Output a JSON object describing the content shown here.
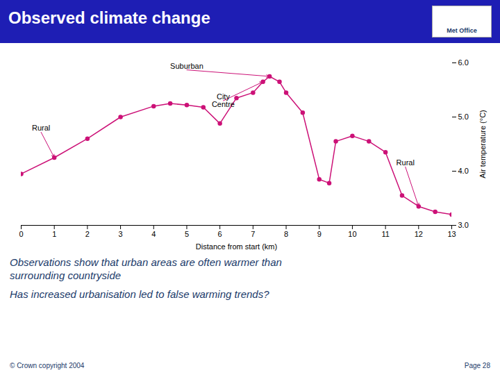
{
  "chart_data": {
    "type": "line",
    "title": "Observed climate change",
    "logo_text": "Met Office",
    "notes": [
      "Observations show that urban areas are often warmer than\nsurrounding countryside",
      "Has increased urbanisation led to false warming trends?"
    ],
    "footer_left": "© Crown copyright 2004",
    "footer_right": "Page 28",
    "xlabel": "Distance from start (km)",
    "ylabel": "Air temperature (°C)",
    "x": [
      0,
      1,
      2,
      3,
      4,
      4.5,
      5,
      5.5,
      6,
      6.5,
      7,
      7.3,
      7.5,
      7.8,
      8,
      8.5,
      9,
      9.3,
      9.5,
      10,
      10.5,
      11,
      11.5,
      12,
      12.5,
      13
    ],
    "values": [
      3.95,
      4.25,
      4.6,
      5.0,
      5.2,
      5.25,
      5.22,
      5.18,
      4.88,
      5.35,
      5.45,
      5.65,
      5.75,
      5.65,
      5.45,
      5.08,
      3.85,
      3.78,
      4.55,
      4.65,
      4.55,
      4.35,
      3.55,
      3.35,
      3.25,
      3.2
    ],
    "color": "#cc1177",
    "marker": "circle",
    "grid": false,
    "xlim": [
      0,
      13
    ],
    "ylim": [
      3,
      6
    ],
    "xticks": [
      0,
      1,
      2,
      3,
      4,
      5,
      6,
      7,
      8,
      9,
      10,
      11,
      12,
      13
    ],
    "yticks": [
      3,
      4,
      5,
      6
    ],
    "annotations": [
      {
        "text": "Rural",
        "xy": [
          1.0,
          4.25
        ],
        "xytext": [
          0.6,
          4.72
        ]
      },
      {
        "text": "Suburban",
        "xy": [
          7.5,
          5.75
        ],
        "xytext": [
          5.0,
          5.87
        ]
      },
      {
        "text": "City\nCentre",
        "xy": [
          7.3,
          5.65
        ],
        "xytext": [
          6.1,
          5.3
        ]
      },
      {
        "text": "Rural",
        "xy": [
          12.0,
          3.35
        ],
        "xytext": [
          11.6,
          4.08
        ]
      }
    ]
  }
}
